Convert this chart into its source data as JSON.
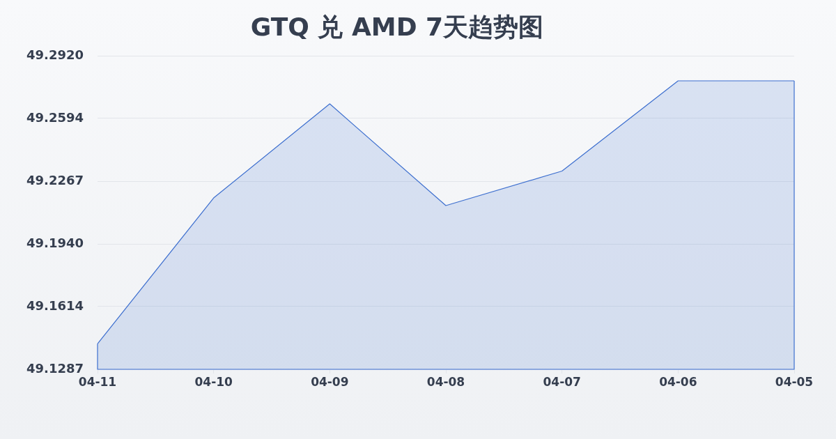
{
  "chart_data": {
    "type": "area",
    "title": "GTQ 兑 AMD 7天趋势图",
    "categories": [
      "04-11",
      "04-10",
      "04-09",
      "04-08",
      "04-07",
      "04-06",
      "04-05"
    ],
    "series": [
      {
        "color": "#3d6fcf",
        "values": [
          49.142,
          49.218,
          49.267,
          49.214,
          49.232,
          49.279,
          49.279
        ]
      }
    ],
    "ylim": [
      49.1287,
      49.292
    ],
    "yticks": [
      49.1287,
      49.1614,
      {
        "value": 49.194,
        "label": "49.1940"
      },
      49.2267,
      49.2594,
      {
        "value": 49.292,
        "label": "49.2920"
      }
    ],
    "grid": "y"
  }
}
